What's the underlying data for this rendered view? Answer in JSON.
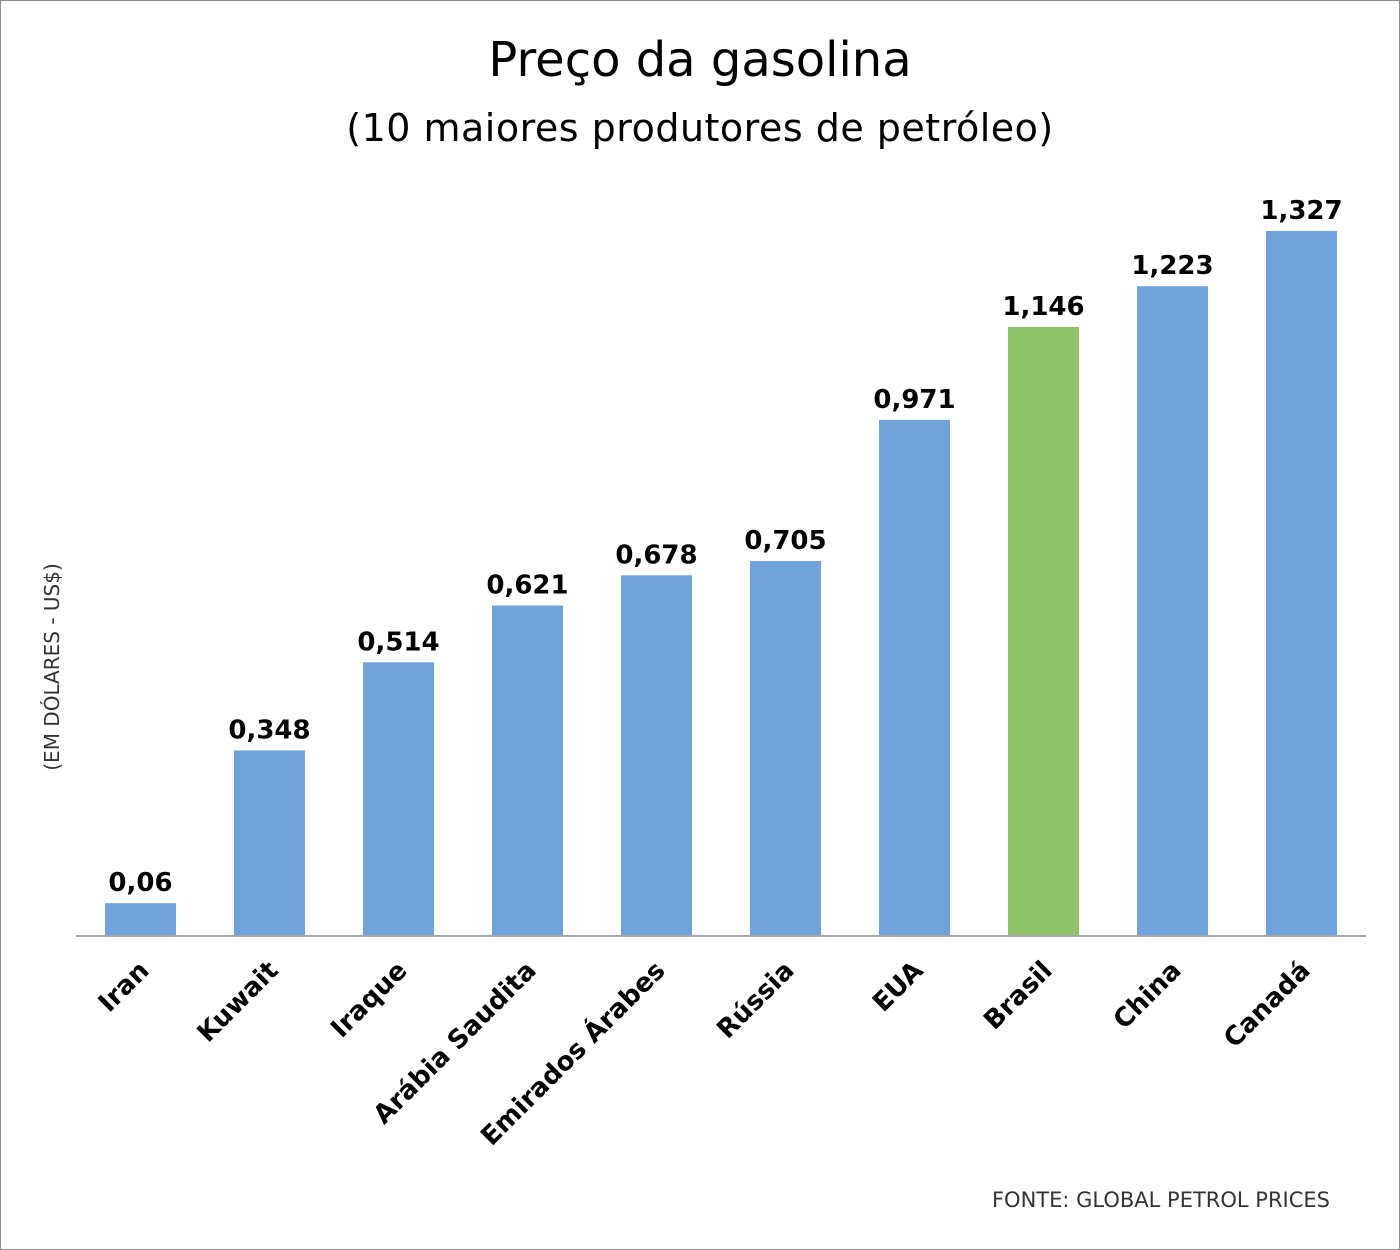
{
  "chart_data": {
    "type": "bar",
    "title": "Preço da gasolina",
    "subtitle": "(10 maiores produtores de petróleo)",
    "ylabel": "(EM DÓLARES - US$)",
    "xlabel": "",
    "categories": [
      "Iran",
      "Kuwait",
      "Iraque",
      "Arábia Saudita",
      "Emirados Árabes",
      "Rússia",
      "EUA",
      "Brasil",
      "China",
      "Canadá"
    ],
    "values": [
      0.06,
      0.348,
      0.514,
      0.621,
      0.678,
      0.705,
      0.971,
      1.146,
      1.223,
      1.327
    ],
    "value_labels": [
      "0,06",
      "0,348",
      "0,514",
      "0,621",
      "0,678",
      "0,705",
      "0,971",
      "1,146",
      "1,223",
      "1,327"
    ],
    "bar_colors": [
      "#6fa3d9",
      "#6fa3d9",
      "#6fa3d9",
      "#6fa3d9",
      "#6fa3d9",
      "#6fa3d9",
      "#6fa3d9",
      "#8fc46a",
      "#6fa3d9",
      "#6fa3d9"
    ],
    "ylim": [
      0,
      1.327
    ],
    "grid": false,
    "legend": "none",
    "source": "FONTE: GLOBAL PETROL PRICES"
  }
}
